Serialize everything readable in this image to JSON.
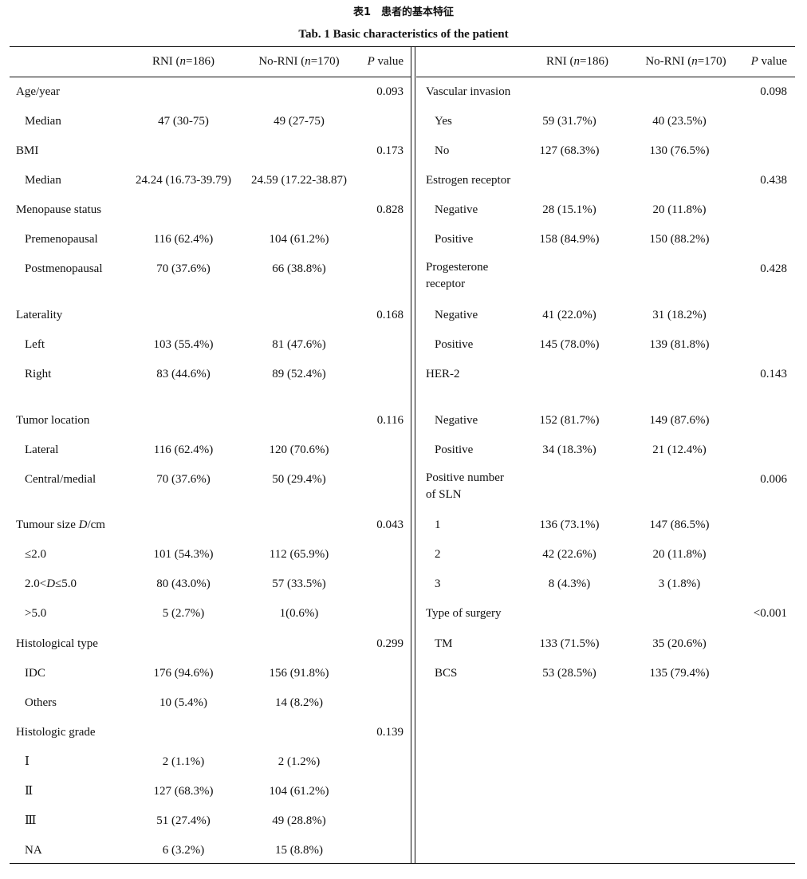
{
  "title_cn": "表1　患者的基本特征",
  "title_en": "Tab. 1  Basic characteristics of the patient",
  "header": {
    "rni": "RNI (",
    "no_rni": "No-RNI (",
    "n": "n",
    "rni_n": "=186)",
    "no_rni_n": "=170)",
    "p": "P",
    "p_value": " value"
  },
  "left_rows": [
    {
      "label": "Age/year",
      "indent": false,
      "rni": "",
      "no_rni": "",
      "p": "0.093"
    },
    {
      "label": "Median",
      "indent": true,
      "rni": "47 (30-75)",
      "no_rni": "49 (27-75)",
      "p": ""
    },
    {
      "label": "BMI",
      "indent": false,
      "rni": "",
      "no_rni": "",
      "p": "0.173"
    },
    {
      "label": "Median",
      "indent": true,
      "rni": "24.24 (16.73-39.79)",
      "no_rni": "24.59 (17.22-38.87)",
      "p": ""
    },
    {
      "label": "Menopause status",
      "indent": false,
      "rni": "",
      "no_rni": "",
      "p": "0.828"
    },
    {
      "label": "Premenopausal",
      "indent": true,
      "rni": "116 (62.4%)",
      "no_rni": "104 (61.2%)",
      "p": ""
    },
    {
      "label": "Postmenopausal",
      "indent": true,
      "rni": "70 (37.6%)",
      "no_rni": "66 (38.8%)",
      "p": ""
    },
    {
      "label": "Laterality",
      "indent": false,
      "rni": "",
      "no_rni": "",
      "p": "0.168"
    },
    {
      "label": "Left",
      "indent": true,
      "rni": "103 (55.4%)",
      "no_rni": "81 (47.6%)",
      "p": ""
    },
    {
      "label": "Right",
      "indent": true,
      "rni": "83 (44.6%)",
      "no_rni": "89 (52.4%)",
      "p": ""
    },
    {
      "label": "Tumor location",
      "indent": false,
      "rni": "",
      "no_rni": "",
      "p": "0.116"
    },
    {
      "label": "Lateral",
      "indent": true,
      "rni": "116 (62.4%)",
      "no_rni": "120 (70.6%)",
      "p": ""
    },
    {
      "label": "Central/medial",
      "indent": true,
      "rni": "70 (37.6%)",
      "no_rni": "50 (29.4%)",
      "p": ""
    },
    {
      "label": "Tumour size D/cm",
      "indent": false,
      "rni": "",
      "no_rni": "",
      "p": "0.043"
    },
    {
      "label": "≤2.0",
      "indent": true,
      "rni": "101 (54.3%)",
      "no_rni": "112 (65.9%)",
      "p": ""
    },
    {
      "label": "2.0<D≤5.0",
      "indent": true,
      "rni": "80 (43.0%)",
      "no_rni": "57 (33.5%)",
      "p": ""
    },
    {
      "label": ">5.0",
      "indent": true,
      "rni": "5 (2.7%)",
      "no_rni": "1(0.6%)",
      "p": ""
    },
    {
      "label": "Histological type",
      "indent": false,
      "rni": "",
      "no_rni": "",
      "p": "0.299"
    },
    {
      "label": "IDC",
      "indent": true,
      "rni": "176 (94.6%)",
      "no_rni": "156 (91.8%)",
      "p": ""
    },
    {
      "label": "Others",
      "indent": true,
      "rni": "10 (5.4%)",
      "no_rni": "14 (8.2%)",
      "p": ""
    },
    {
      "label": "Histologic grade",
      "indent": false,
      "rni": "",
      "no_rni": "",
      "p": "0.139"
    },
    {
      "label": "Ⅰ",
      "indent": true,
      "rni": "2 (1.1%)",
      "no_rni": "2 (1.2%)",
      "p": ""
    },
    {
      "label": "Ⅱ",
      "indent": true,
      "rni": "127 (68.3%)",
      "no_rni": "104 (61.2%)",
      "p": ""
    },
    {
      "label": "Ⅲ",
      "indent": true,
      "rni": "51 (27.4%)",
      "no_rni": "49 (28.8%)",
      "p": ""
    },
    {
      "label": "NA",
      "indent": true,
      "rni": "6 (3.2%)",
      "no_rni": "15 (8.8%)",
      "p": ""
    }
  ],
  "right_rows": [
    {
      "label": "Vascular invasion",
      "indent": false,
      "rni": "",
      "no_rni": "",
      "p": "0.098"
    },
    {
      "label": "Yes",
      "indent": true,
      "rni": "59 (31.7%)",
      "no_rni": "40 (23.5%)",
      "p": ""
    },
    {
      "label": "No",
      "indent": true,
      "rni": "127 (68.3%)",
      "no_rni": "130 (76.5%)",
      "p": ""
    },
    {
      "label": "Estrogen receptor",
      "indent": false,
      "rni": "",
      "no_rni": "",
      "p": "0.438"
    },
    {
      "label": "Negative",
      "indent": true,
      "rni": "28 (15.1%)",
      "no_rni": "20 (11.8%)",
      "p": ""
    },
    {
      "label": "Positive",
      "indent": true,
      "rni": "158 (84.9%)",
      "no_rni": "150 (88.2%)",
      "p": ""
    },
    {
      "label": "Progesterone receptor",
      "indent": false,
      "rni": "",
      "no_rni": "",
      "p": "0.428"
    },
    {
      "label": "Negative",
      "indent": true,
      "rni": "41 (22.0%)",
      "no_rni": "31 (18.2%)",
      "p": ""
    },
    {
      "label": "Positive",
      "indent": true,
      "rni": "145 (78.0%)",
      "no_rni": "139 (81.8%)",
      "p": ""
    },
    {
      "label": "HER-2",
      "indent": false,
      "rni": "",
      "no_rni": "",
      "p": "0.143"
    },
    {
      "label": "Negative",
      "indent": true,
      "rni": "152 (81.7%)",
      "no_rni": "149 (87.6%)",
      "p": ""
    },
    {
      "label": "Positive",
      "indent": true,
      "rni": "34 (18.3%)",
      "no_rni": "21 (12.4%)",
      "p": ""
    },
    {
      "label": "Positive number of SLN",
      "indent": false,
      "rni": "",
      "no_rni": "",
      "p": "0.006"
    },
    {
      "label": "1",
      "indent": true,
      "rni": "136 (73.1%)",
      "no_rni": "147 (86.5%)",
      "p": ""
    },
    {
      "label": "2",
      "indent": true,
      "rni": "42 (22.6%)",
      "no_rni": "20 (11.8%)",
      "p": ""
    },
    {
      "label": "3",
      "indent": true,
      "rni": "8 (4.3%)",
      "no_rni": "3 (1.8%)",
      "p": ""
    },
    {
      "label": "Type of surgery",
      "indent": false,
      "rni": "",
      "no_rni": "",
      "p": "<0.001"
    },
    {
      "label": "TM",
      "indent": true,
      "rni": "133 (71.5%)",
      "no_rni": "35 (20.6%)",
      "p": ""
    },
    {
      "label": "BCS",
      "indent": true,
      "rni": "53 (28.5%)",
      "no_rni": "135 (79.4%)",
      "p": ""
    }
  ]
}
